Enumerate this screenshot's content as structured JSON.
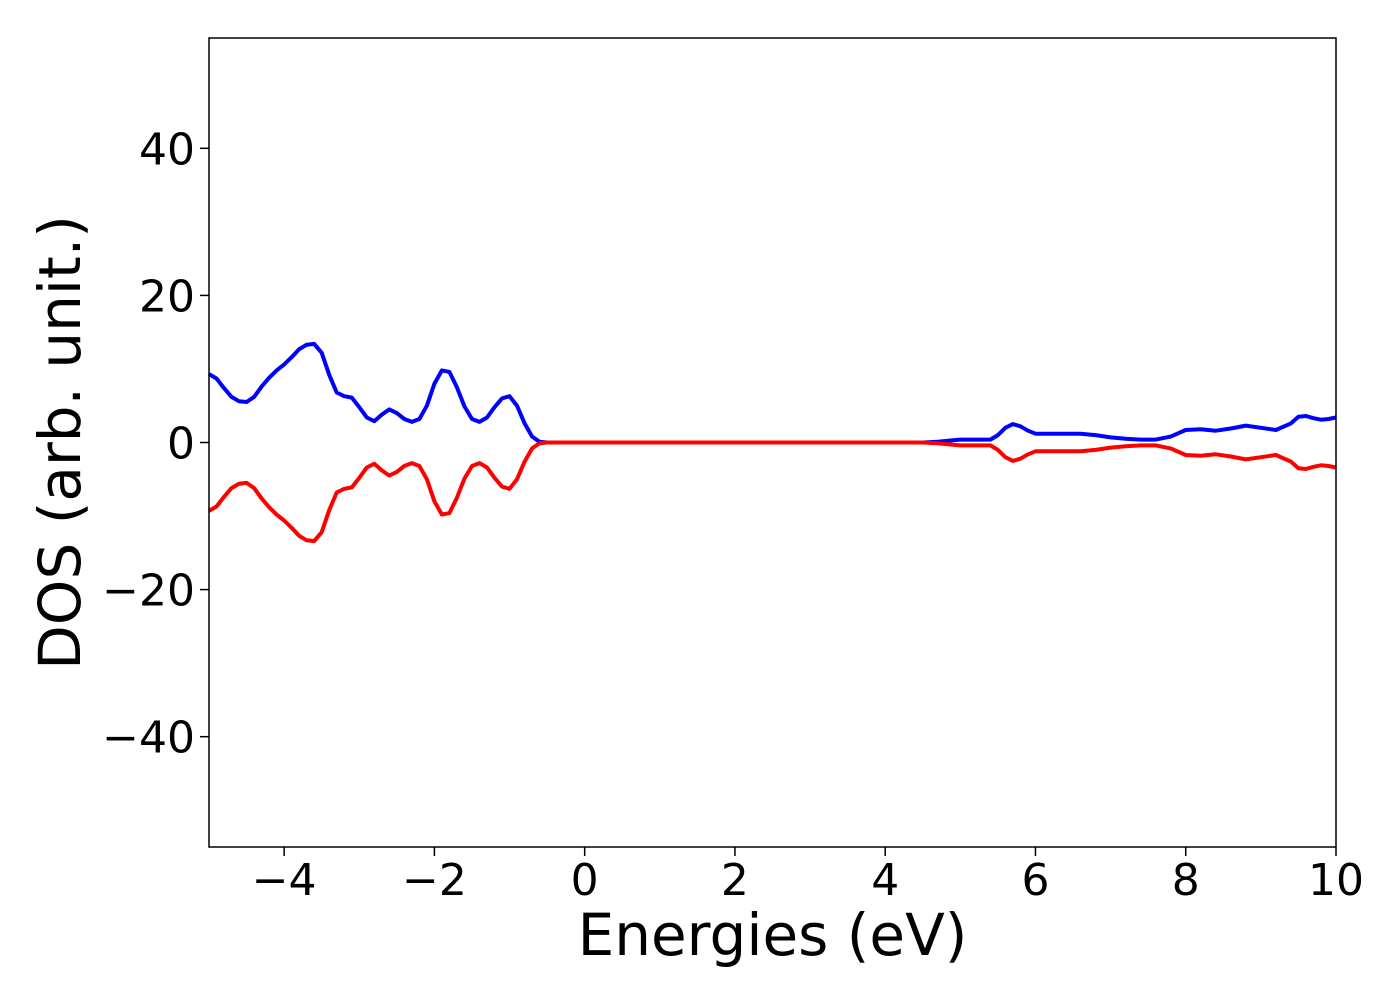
{
  "chart_data": {
    "type": "line",
    "title": "",
    "xlabel": "Energies (eV)",
    "ylabel": "DOS (arb. unit.)",
    "xlim": [
      -5,
      10
    ],
    "ylim": [
      -55,
      55
    ],
    "xticks": [
      -4,
      -2,
      0,
      2,
      4,
      6,
      8,
      10
    ],
    "yticks": [
      -40,
      -20,
      0,
      20,
      40
    ],
    "xtick_labels": [
      "−4",
      "−2",
      "0",
      "2",
      "4",
      "6",
      "8",
      "10"
    ],
    "ytick_labels": [
      "−40",
      "−20",
      "0",
      "20",
      "40"
    ],
    "grid": false,
    "legend": false,
    "series": [
      {
        "color": "#0000ff",
        "x": [
          -5.0,
          -4.9,
          -4.8,
          -4.7,
          -4.6,
          -4.5,
          -4.4,
          -4.3,
          -4.2,
          -4.1,
          -4.0,
          -3.9,
          -3.8,
          -3.7,
          -3.6,
          -3.5,
          -3.4,
          -3.3,
          -3.2,
          -3.1,
          -3.0,
          -2.9,
          -2.8,
          -2.7,
          -2.6,
          -2.5,
          -2.4,
          -2.3,
          -2.2,
          -2.1,
          -2.0,
          -1.9,
          -1.8,
          -1.7,
          -1.6,
          -1.5,
          -1.4,
          -1.3,
          -1.2,
          -1.1,
          -1.0,
          -0.9,
          -0.8,
          -0.7,
          -0.6,
          -0.5,
          0.0,
          1.0,
          2.0,
          3.0,
          4.0,
          4.5,
          4.7,
          4.9,
          5.0,
          5.2,
          5.4,
          5.5,
          5.6,
          5.7,
          5.8,
          5.9,
          6.0,
          6.2,
          6.4,
          6.6,
          6.8,
          7.0,
          7.2,
          7.4,
          7.6,
          7.8,
          8.0,
          8.2,
          8.4,
          8.6,
          8.8,
          9.0,
          9.2,
          9.4,
          9.5,
          9.6,
          9.7,
          9.8,
          9.9,
          10.0
        ],
        "values": [
          9.3,
          8.7,
          7.4,
          6.2,
          5.6,
          5.5,
          6.2,
          7.6,
          8.8,
          9.8,
          10.6,
          11.6,
          12.7,
          13.3,
          13.4,
          12.2,
          9.2,
          6.8,
          6.3,
          6.1,
          4.8,
          3.4,
          2.9,
          3.8,
          4.5,
          4.0,
          3.2,
          2.8,
          3.2,
          5.0,
          8.0,
          9.8,
          9.6,
          7.5,
          4.9,
          3.2,
          2.8,
          3.4,
          4.8,
          6.0,
          6.3,
          5.0,
          2.6,
          0.8,
          0.1,
          0.0,
          0.0,
          0.0,
          0.0,
          0.0,
          0.0,
          0.0,
          0.1,
          0.3,
          0.4,
          0.4,
          0.4,
          1.0,
          2.0,
          2.5,
          2.2,
          1.6,
          1.2,
          1.2,
          1.2,
          1.2,
          1.0,
          0.7,
          0.5,
          0.4,
          0.4,
          0.8,
          1.7,
          1.8,
          1.6,
          1.9,
          2.3,
          2.0,
          1.7,
          2.6,
          3.5,
          3.6,
          3.3,
          3.1,
          3.2,
          3.4
        ]
      },
      {
        "color": "#ff0000",
        "x": [
          -5.0,
          -4.9,
          -4.8,
          -4.7,
          -4.6,
          -4.5,
          -4.4,
          -4.3,
          -4.2,
          -4.1,
          -4.0,
          -3.9,
          -3.8,
          -3.7,
          -3.6,
          -3.5,
          -3.4,
          -3.3,
          -3.2,
          -3.1,
          -3.0,
          -2.9,
          -2.8,
          -2.7,
          -2.6,
          -2.5,
          -2.4,
          -2.3,
          -2.2,
          -2.1,
          -2.0,
          -1.9,
          -1.8,
          -1.7,
          -1.6,
          -1.5,
          -1.4,
          -1.3,
          -1.2,
          -1.1,
          -1.0,
          -0.9,
          -0.8,
          -0.7,
          -0.6,
          -0.5,
          0.0,
          1.0,
          2.0,
          3.0,
          4.0,
          4.5,
          4.7,
          4.9,
          5.0,
          5.2,
          5.4,
          5.5,
          5.6,
          5.7,
          5.8,
          5.9,
          6.0,
          6.2,
          6.4,
          6.6,
          6.8,
          7.0,
          7.2,
          7.4,
          7.6,
          7.8,
          8.0,
          8.2,
          8.4,
          8.6,
          8.8,
          9.0,
          9.2,
          9.4,
          9.5,
          9.6,
          9.7,
          9.8,
          9.9,
          10.0
        ],
        "values": [
          -9.3,
          -8.7,
          -7.4,
          -6.2,
          -5.6,
          -5.5,
          -6.2,
          -7.6,
          -8.8,
          -9.8,
          -10.6,
          -11.6,
          -12.7,
          -13.3,
          -13.4,
          -12.2,
          -9.2,
          -6.8,
          -6.3,
          -6.1,
          -4.8,
          -3.4,
          -2.9,
          -3.8,
          -4.5,
          -4.0,
          -3.2,
          -2.8,
          -3.2,
          -5.0,
          -8.0,
          -9.8,
          -9.6,
          -7.5,
          -4.9,
          -3.2,
          -2.8,
          -3.4,
          -4.8,
          -6.0,
          -6.3,
          -5.0,
          -2.6,
          -0.8,
          -0.1,
          0.0,
          0.0,
          0.0,
          0.0,
          0.0,
          0.0,
          0.0,
          -0.1,
          -0.3,
          -0.4,
          -0.4,
          -0.4,
          -1.0,
          -2.0,
          -2.5,
          -2.2,
          -1.6,
          -1.2,
          -1.2,
          -1.2,
          -1.2,
          -1.0,
          -0.7,
          -0.5,
          -0.4,
          -0.4,
          -0.8,
          -1.7,
          -1.8,
          -1.6,
          -1.9,
          -2.3,
          -2.0,
          -1.7,
          -2.6,
          -3.5,
          -3.6,
          -3.3,
          -3.1,
          -3.2,
          -3.4
        ]
      }
    ]
  }
}
